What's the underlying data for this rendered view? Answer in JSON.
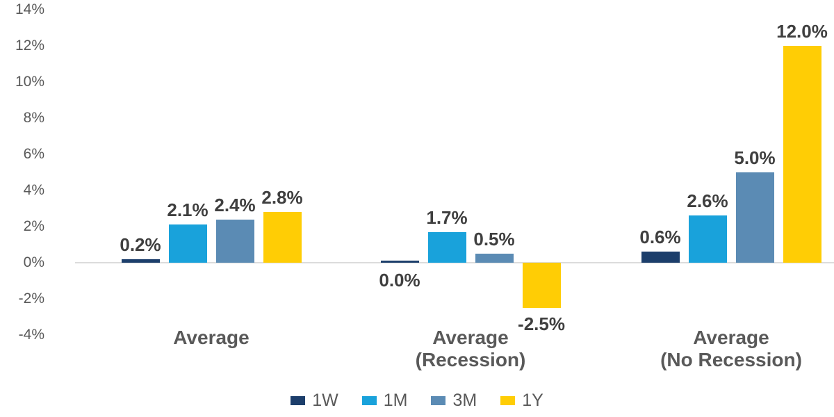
{
  "chart_data": {
    "type": "bar",
    "title": "",
    "categories": [
      "Average",
      "Average\n(Recession)",
      "Average\n(No Recession)"
    ],
    "series": [
      {
        "name": "1W",
        "color": "#1C3E6B",
        "values": [
          0.2,
          0.0,
          0.6
        ],
        "labels": [
          "0.2%",
          "0.0%",
          "0.6%"
        ]
      },
      {
        "name": "1M",
        "color": "#19A2DB",
        "values": [
          2.1,
          1.7,
          2.6
        ],
        "labels": [
          "2.1%",
          "1.7%",
          "2.6%"
        ]
      },
      {
        "name": "3M",
        "color": "#5B8BB4",
        "values": [
          2.4,
          0.5,
          5.0
        ],
        "labels": [
          "2.4%",
          "0.5%",
          "5.0%"
        ]
      },
      {
        "name": "1Y",
        "color": "#FFCD05",
        "values": [
          2.8,
          -2.5,
          12.0
        ],
        "labels": [
          "2.8%",
          "-2.5%",
          "12.0%"
        ]
      }
    ],
    "y_axis": {
      "ticks": [
        {
          "label": "14%",
          "value": 14
        },
        {
          "label": "12%",
          "value": 12
        },
        {
          "label": "10%",
          "value": 10
        },
        {
          "label": "8%",
          "value": 8
        },
        {
          "label": "6%",
          "value": 6
        },
        {
          "label": "4%",
          "value": 4
        },
        {
          "label": "2%",
          "value": 2
        },
        {
          "label": "0%",
          "value": 0
        },
        {
          "label": "-2%",
          "value": -2
        },
        {
          "label": "-4%",
          "value": -4
        }
      ],
      "range": [
        -4,
        14
      ]
    },
    "grid": false,
    "legend_position": "bottom",
    "colors": {
      "axis_line": "#DCDCDC",
      "tick_text": "#595959",
      "data_label": "#3F3F3F",
      "category_text": "#595959",
      "legend_text": "#595959",
      "background": "#FFFFFF"
    }
  }
}
